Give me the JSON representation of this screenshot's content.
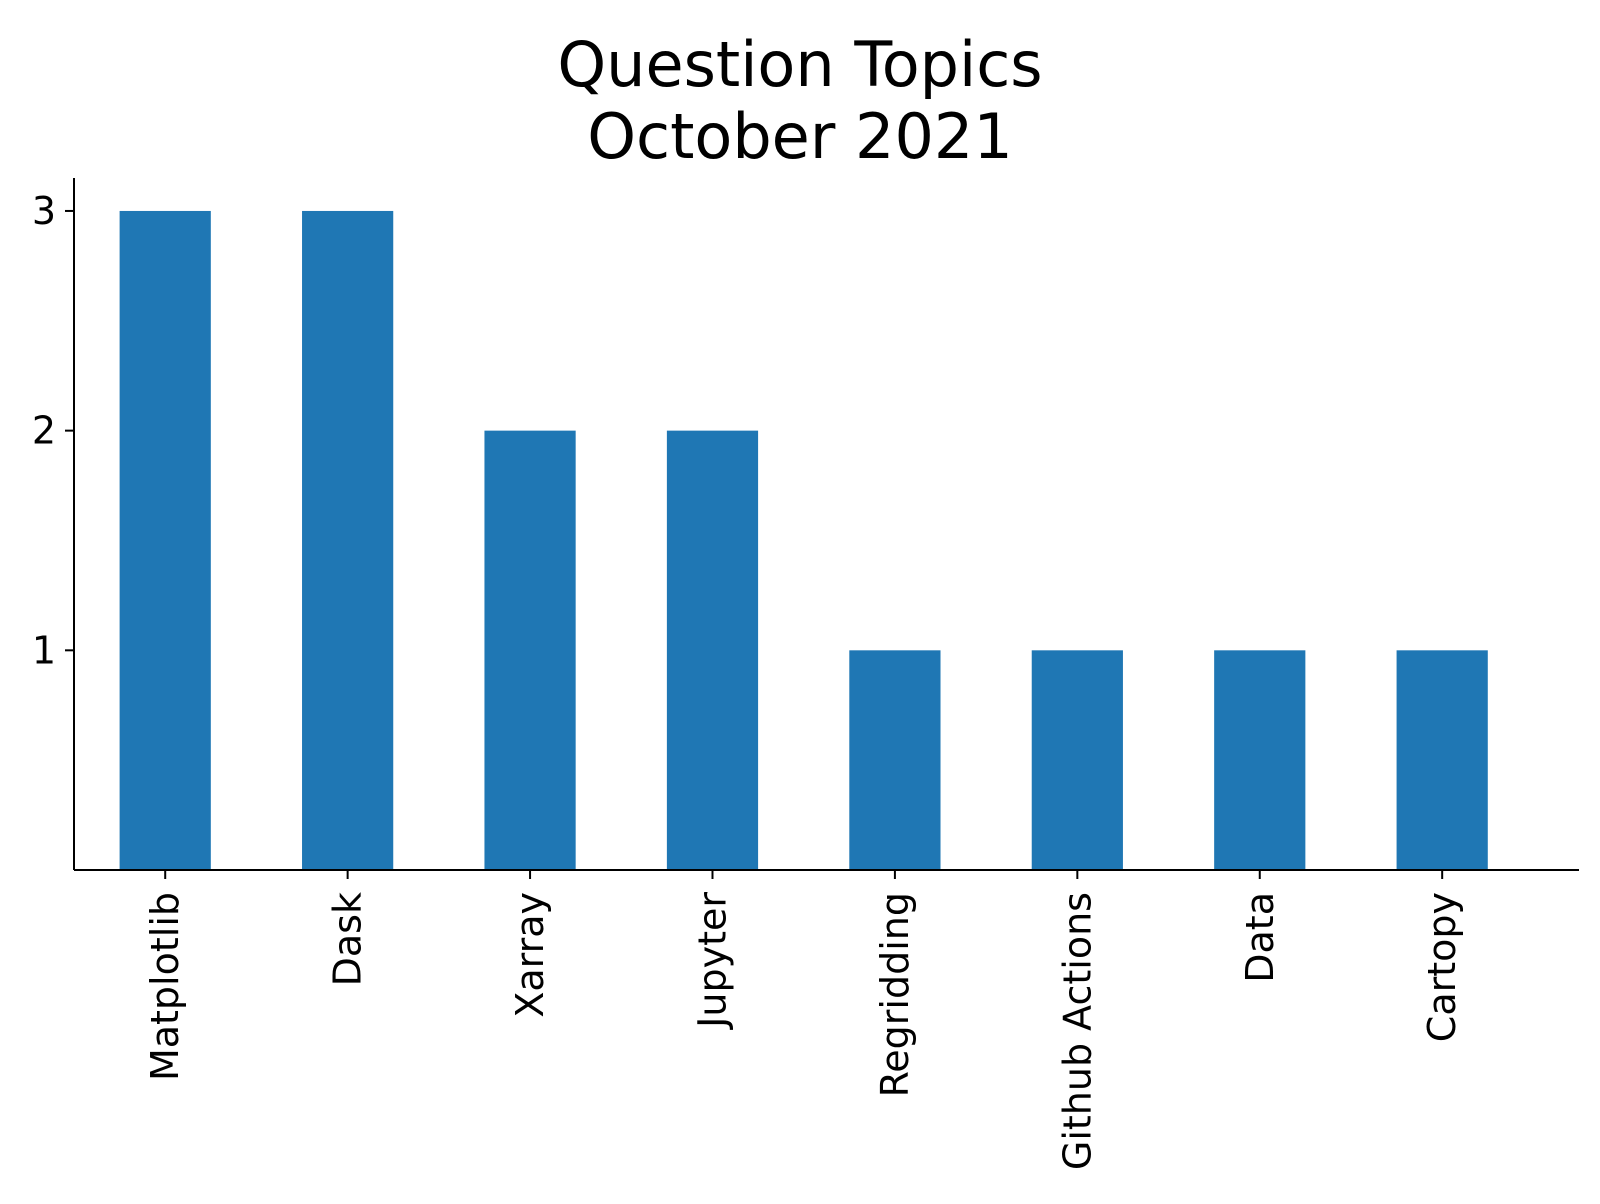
{
  "chart_data": {
    "type": "bar",
    "title_lines": [
      "Question Topics",
      "October 2021"
    ],
    "categories": [
      "Matplotlib",
      "Dask",
      "Xarray",
      "Jupyter",
      "Regridding",
      "Github Actions",
      "Data",
      "Cartopy"
    ],
    "values": [
      3,
      3,
      2,
      2,
      1,
      1,
      1,
      1
    ],
    "xlabel": "",
    "ylabel": "",
    "ylim": [
      0,
      3.15
    ],
    "yticks": [
      1,
      2,
      3
    ],
    "grid": false,
    "legend": "none",
    "bar_color": "#1f77b4",
    "axis_color": "#000000"
  }
}
